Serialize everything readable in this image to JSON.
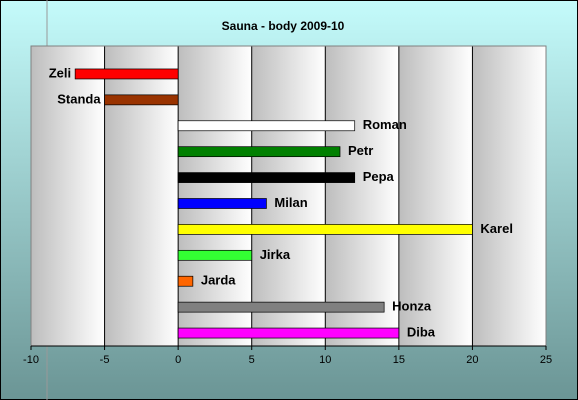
{
  "chart_data": {
    "type": "hbar",
    "title": "Sauna - body 2009-10",
    "categories": [
      "Zeli",
      "Standa",
      "Roman",
      "Petr",
      "Pepa",
      "Milan",
      "Karel",
      "Jirka",
      "Jarda",
      "Honza",
      "Diba"
    ],
    "values": [
      -7,
      -5,
      12,
      11,
      12,
      6,
      20,
      5,
      1,
      14,
      15
    ],
    "colors": [
      "#ff0000",
      "#993300",
      "#ffffff",
      "#008000",
      "#000000",
      "#0000ff",
      "#ffff00",
      "#33ff33",
      "#ff6600",
      "#808080",
      "#ff00ff"
    ],
    "xlim": [
      -10,
      25
    ],
    "xticks": [
      -10,
      -5,
      0,
      5,
      10,
      15,
      20,
      25
    ],
    "grid": true
  }
}
